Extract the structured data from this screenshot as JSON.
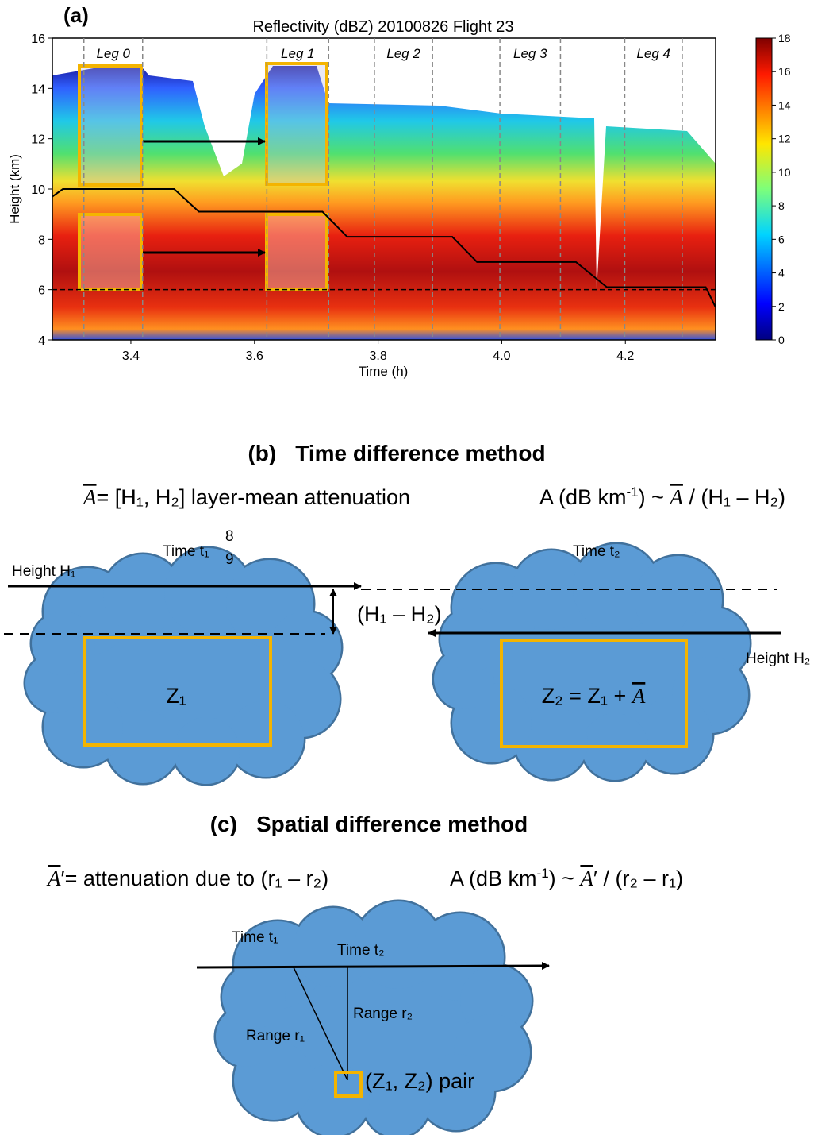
{
  "chart_data": {
    "type": "line",
    "panel_label": "(a)",
    "title": "Reflectivity (dBZ) 20100826 Flight 23",
    "x_label": "Time (h)",
    "y_label": "Height (km)",
    "xlim": [
      3.273,
      4.346
    ],
    "ylim": [
      4,
      16
    ],
    "xticks": [
      3.4,
      3.6,
      3.8,
      {
        "value": 4,
        "label": "4.0"
      },
      4.2
    ],
    "yticks": [
      4,
      6,
      8,
      10,
      12,
      14,
      16
    ],
    "series": [
      {
        "color": "#000000",
        "x": [
          3.273,
          3.29,
          3.47,
          3.51,
          3.71,
          3.75,
          3.92,
          3.96,
          4.12,
          4.17,
          4.33,
          4.346
        ],
        "values": [
          9.7,
          10.0,
          10.0,
          9.1,
          9.1,
          8.1,
          8.1,
          7.1,
          7.1,
          6.1,
          6.1,
          5.3
        ]
      }
    ],
    "hline": 6,
    "legs": [
      {
        "label": "Leg 0",
        "start": 3.324,
        "end": 3.419
      },
      {
        "label": "Leg 1",
        "start": 3.62,
        "end": 3.72
      },
      {
        "label": "Leg 2",
        "start": 3.794,
        "end": 3.888
      },
      {
        "label": "Leg 3",
        "start": 3.997,
        "end": 4.095
      },
      {
        "label": "Leg 4",
        "start": 4.199,
        "end": 4.292
      }
    ],
    "colorbar": {
      "clim": [
        0,
        18
      ],
      "ticks": [
        0,
        2,
        4,
        6,
        8,
        10,
        12,
        14,
        16,
        18
      ]
    }
  },
  "diagram_b": {
    "label": "(b)",
    "title": "Time difference method",
    "eq_left": {
      "symbol": "A",
      "text": "= [H₁, H₂] layer-mean attenuation"
    },
    "eq_right": {
      "prefix": "A (dB km",
      "sup": "-1",
      "mid": ") ~ ",
      "symbol": "A",
      "suffix": " / (H₁ – H₂)"
    },
    "time1": "Time t₁",
    "stray_top": "8",
    "stray_bottom": "9",
    "time2": "Time t₂",
    "height1": "Height H₁",
    "height2": "Height H₂",
    "diff": "(H₁ – H₂)",
    "z1": "Z₁",
    "z2": {
      "text": "Z₂ = Z₁ + ",
      "symbol": "A"
    }
  },
  "diagram_c": {
    "label": "(c)",
    "title": "Spatial difference method",
    "eq_left": {
      "symbol": "A",
      "text": "′= attenuation due to (r₁ – r₂)"
    },
    "eq_right": {
      "prefix": "A (dB km",
      "sup": "-1",
      "mid": ") ~ ",
      "symbol": "A",
      "suffix": "′ / (r₂ – r₁)"
    },
    "time1": "Time t₁",
    "time2": "Time t₂",
    "range1": "Range r₁",
    "range2": "Range r₂",
    "pair": "(Z₁, Z₂) pair"
  }
}
